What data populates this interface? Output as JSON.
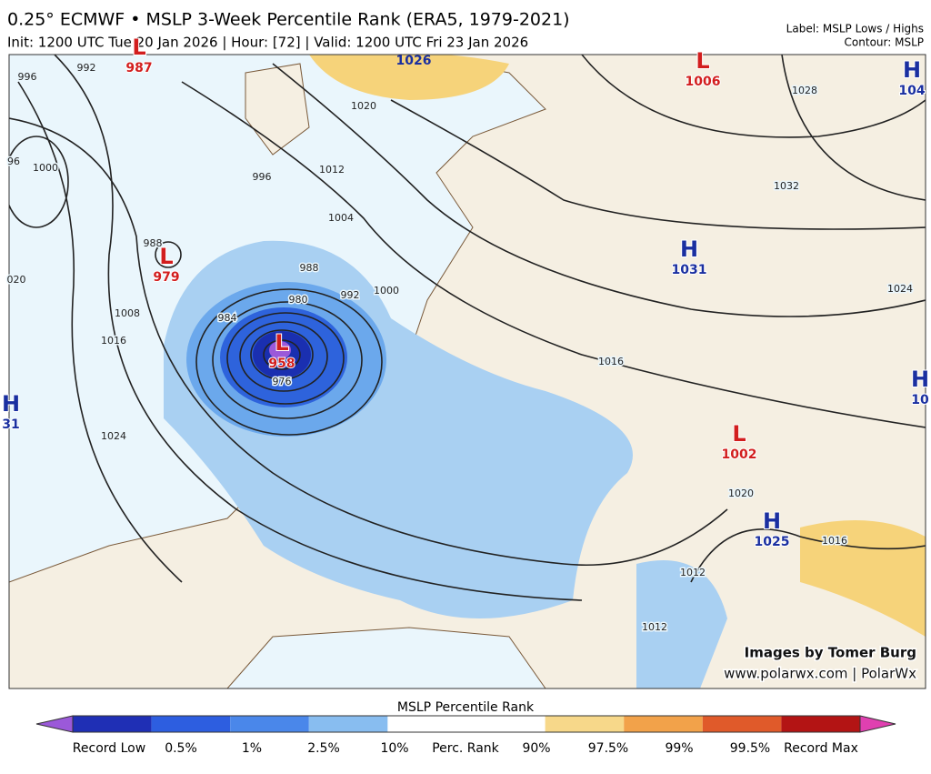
{
  "header": {
    "title": "0.25° ECMWF • MSLP 3-Week Percentile Rank (ERA5, 1979-2021)",
    "subtitle": "Init: 1200 UTC Tue 20 Jan 2026 | Hour: [72] | Valid: 1200 UTC Fri 23 Jan 2026",
    "label_note": "Label: MSLP Lows / Highs",
    "contour_note": "Contour: MSLP"
  },
  "centers": [
    {
      "kind": "L",
      "value": 987
    },
    {
      "kind": "L",
      "value": 1006
    },
    {
      "kind": "H",
      "value": 104
    },
    {
      "kind": "L",
      "value": 979
    },
    {
      "kind": "L",
      "value": 958
    },
    {
      "kind": "H",
      "value": 1031
    },
    {
      "kind": "H",
      "value": 31
    },
    {
      "kind": "L",
      "value": 1002
    },
    {
      "kind": "H",
      "value": 1025
    },
    {
      "kind": "H",
      "value": 10
    }
  ],
  "top_high_value": 1026,
  "contour_labels": [
    996,
    992,
    96,
    1000,
    1020,
    1012,
    996,
    1004,
    988,
    1008,
    1016,
    1024,
    "020",
    988,
    984,
    980,
    992,
    1000,
    1016,
    1024,
    1028,
    1032,
    1016,
    1020,
    1012,
    1012,
    976
  ],
  "credit": {
    "line1": "Images by Tomer Burg",
    "line2": "www.polarwx.com | PolarWx"
  },
  "colorbar": {
    "title": "MSLP Percentile Rank",
    "labels": [
      "Record Low",
      "0.5%",
      "1%",
      "2.5%",
      "10%",
      "Perc. Rank",
      "90%",
      "97.5%",
      "99%",
      "99.5%",
      "Record Max"
    ]
  }
}
